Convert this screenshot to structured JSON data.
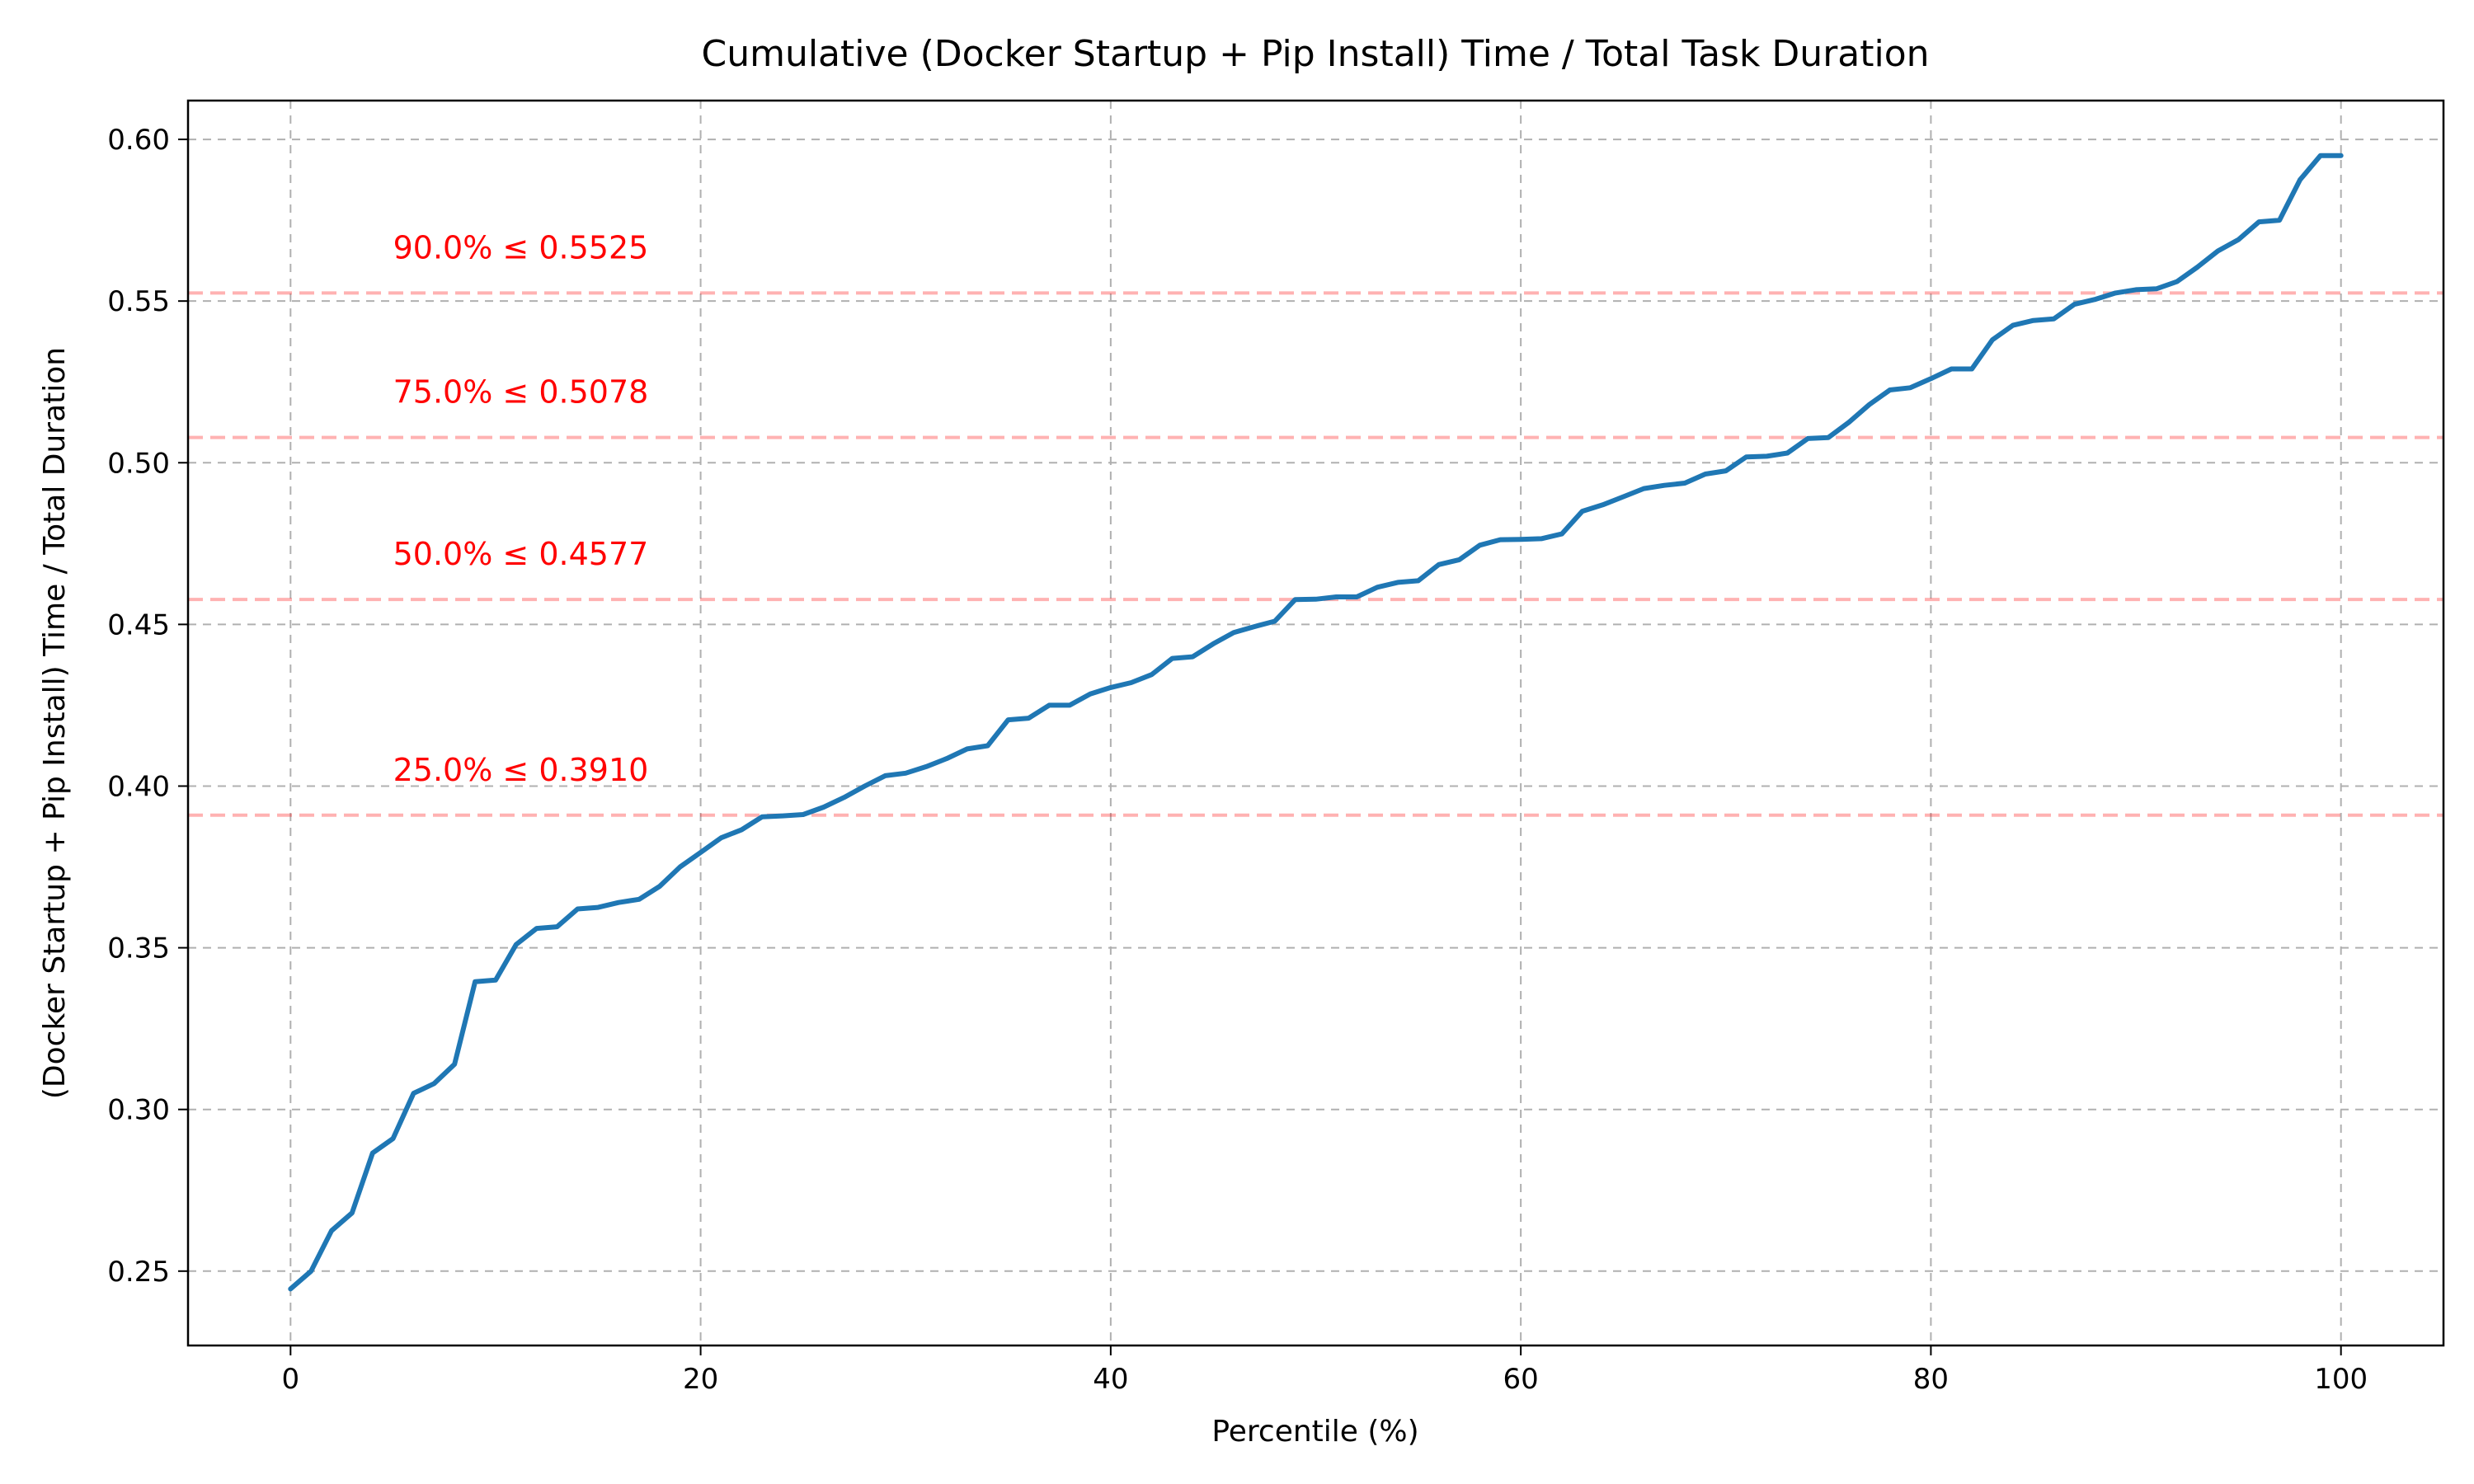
{
  "chart_data": {
    "type": "line",
    "title": "Cumulative (Docker Startup + Pip Install) Time / Total Task Duration",
    "xlabel": "Percentile (%)",
    "ylabel": "(Docker Startup + Pip Install) Time / Total Duration",
    "xlim": [
      -5,
      105
    ],
    "ylim": [
      0.227,
      0.612
    ],
    "x_ticks": [
      0,
      20,
      40,
      60,
      80,
      100
    ],
    "x_tick_labels": [
      "0",
      "20",
      "40",
      "60",
      "80",
      "100"
    ],
    "y_ticks": [
      0.25,
      0.3,
      0.35,
      0.4,
      0.45,
      0.5,
      0.55,
      0.6
    ],
    "y_tick_labels": [
      "0.25",
      "0.30",
      "0.35",
      "0.40",
      "0.45",
      "0.50",
      "0.55",
      "0.60"
    ],
    "grid": true,
    "series": [
      {
        "color": "#1f77b4",
        "x": [
          0,
          1,
          2,
          3,
          4,
          5,
          6,
          7,
          8,
          9,
          10,
          11,
          12,
          13,
          14,
          15,
          16,
          17,
          18,
          19,
          20,
          21,
          22,
          23,
          24,
          25,
          26,
          27,
          28,
          29,
          30,
          31,
          32,
          33,
          34,
          35,
          36,
          37,
          38,
          39,
          40,
          41,
          42,
          43,
          44,
          45,
          46,
          47,
          48,
          49,
          50,
          51,
          52,
          53,
          54,
          55,
          56,
          57,
          58,
          59,
          60,
          61,
          62,
          63,
          64,
          65,
          66,
          67,
          68,
          69,
          70,
          71,
          72,
          73,
          74,
          75,
          76,
          77,
          78,
          79,
          80,
          81,
          82,
          83,
          84,
          85,
          86,
          87,
          88,
          89,
          90,
          91,
          92,
          93,
          94,
          95,
          96,
          97,
          98,
          99,
          100
        ],
        "y": [
          0.2445,
          0.25,
          0.2625,
          0.268,
          0.2865,
          0.291,
          0.305,
          0.308,
          0.314,
          0.3395,
          0.34,
          0.351,
          0.356,
          0.3565,
          0.362,
          0.3625,
          0.364,
          0.365,
          0.369,
          0.375,
          0.3795,
          0.384,
          0.3865,
          0.3905,
          0.3908,
          0.3912,
          0.3935,
          0.3965,
          0.4,
          0.4032,
          0.404,
          0.406,
          0.4085,
          0.4115,
          0.4125,
          0.4205,
          0.421,
          0.425,
          0.425,
          0.4285,
          0.4305,
          0.432,
          0.4345,
          0.4395,
          0.44,
          0.444,
          0.4475,
          0.4493,
          0.451,
          0.4577,
          0.4578,
          0.4585,
          0.4585,
          0.4615,
          0.463,
          0.4635,
          0.4685,
          0.47,
          0.4745,
          0.4762,
          0.4763,
          0.4765,
          0.478,
          0.485,
          0.487,
          0.4895,
          0.492,
          0.493,
          0.4937,
          0.4965,
          0.4975,
          0.5018,
          0.502,
          0.503,
          0.5075,
          0.5078,
          0.5125,
          0.518,
          0.5225,
          0.5232,
          0.526,
          0.529,
          0.529,
          0.538,
          0.5425,
          0.544,
          0.5445,
          0.549,
          0.5505,
          0.5525,
          0.5535,
          0.5538,
          0.556,
          0.5605,
          0.5655,
          0.569,
          0.5745,
          0.575,
          0.5875,
          0.595,
          0.595
        ]
      }
    ],
    "percentile_lines": [
      {
        "y": 0.5525,
        "label": "90.0% ≤ 0.5525"
      },
      {
        "y": 0.5078,
        "label": "75.0% ≤ 0.5078"
      },
      {
        "y": 0.4577,
        "label": "50.0% ≤ 0.4577"
      },
      {
        "y": 0.391,
        "label": "25.0% ≤ 0.3910"
      }
    ]
  }
}
